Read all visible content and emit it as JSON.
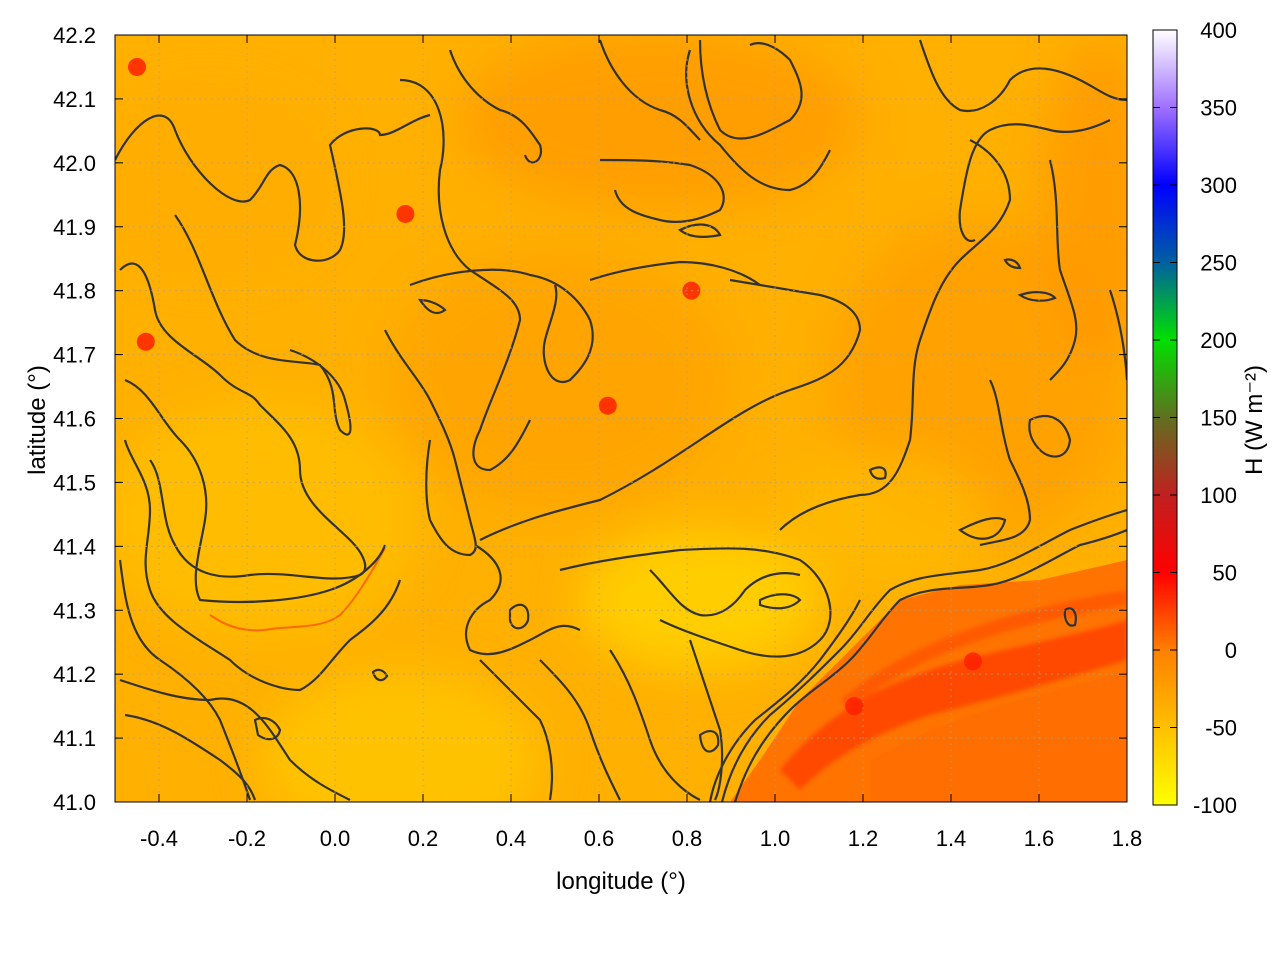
{
  "chart_data": {
    "type": "heatmap",
    "xlabel": "longitude (°)",
    "ylabel": "latitude (°)",
    "xlim": [
      -0.5,
      1.8
    ],
    "ylim": [
      41.0,
      42.2
    ],
    "x_ticks": [
      -0.4,
      -0.2,
      0.0,
      0.2,
      0.4,
      0.6,
      0.8,
      1.0,
      1.2,
      1.4,
      1.6,
      1.8
    ],
    "x_tick_labels": [
      "-0.4",
      "-0.2",
      "0.0",
      "0.2",
      "0.4",
      "0.6",
      "0.8",
      "1.0",
      "1.2",
      "1.4",
      "1.6",
      "1.8"
    ],
    "y_ticks": [
      41.0,
      41.1,
      41.2,
      41.3,
      41.4,
      41.5,
      41.6,
      41.7,
      41.8,
      41.9,
      42.0,
      42.1,
      42.2
    ],
    "y_tick_labels": [
      "41.0",
      "41.1",
      "41.2",
      "41.3",
      "41.4",
      "41.5",
      "41.6",
      "41.7",
      "41.8",
      "41.9",
      "42.0",
      "42.1",
      "42.2"
    ],
    "grid": true,
    "colorbar": {
      "label": "H (W m⁻²)",
      "range": [
        -100,
        400
      ],
      "ticks": [
        -100,
        -50,
        0,
        50,
        100,
        150,
        200,
        250,
        300,
        350,
        400
      ],
      "tick_labels": [
        "-100",
        "-50",
        "0",
        "50",
        "100",
        "150",
        "200",
        "250",
        "300",
        "350",
        "400"
      ],
      "stops": [
        {
          "value": -100,
          "color": "#ffff00"
        },
        {
          "value": -50,
          "color": "#ffc000"
        },
        {
          "value": 0,
          "color": "#ff8000"
        },
        {
          "value": 50,
          "color": "#ff0000"
        },
        {
          "value": 100,
          "color": "#c02020"
        },
        {
          "value": 150,
          "color": "#607020"
        },
        {
          "value": 200,
          "color": "#00e000"
        },
        {
          "value": 250,
          "color": "#0060a0"
        },
        {
          "value": 300,
          "color": "#0000ff"
        },
        {
          "value": 350,
          "color": "#a070ff"
        },
        {
          "value": 400,
          "color": "#ffffff"
        }
      ]
    },
    "field_description": {
      "land_typical_value": -40,
      "coastal_sea_value": 5,
      "hotspot_value": 45
    },
    "contour_color": "#333333",
    "hotspots": [
      {
        "lon": 0.62,
        "lat": 41.62
      },
      {
        "lon": 0.81,
        "lat": 41.8
      },
      {
        "lon": -0.45,
        "lat": 42.15
      },
      {
        "lon": 0.16,
        "lat": 41.92
      },
      {
        "lon": -0.43,
        "lat": 41.72
      },
      {
        "lon": 1.18,
        "lat": 41.15
      },
      {
        "lon": 1.45,
        "lat": 41.22
      }
    ]
  }
}
